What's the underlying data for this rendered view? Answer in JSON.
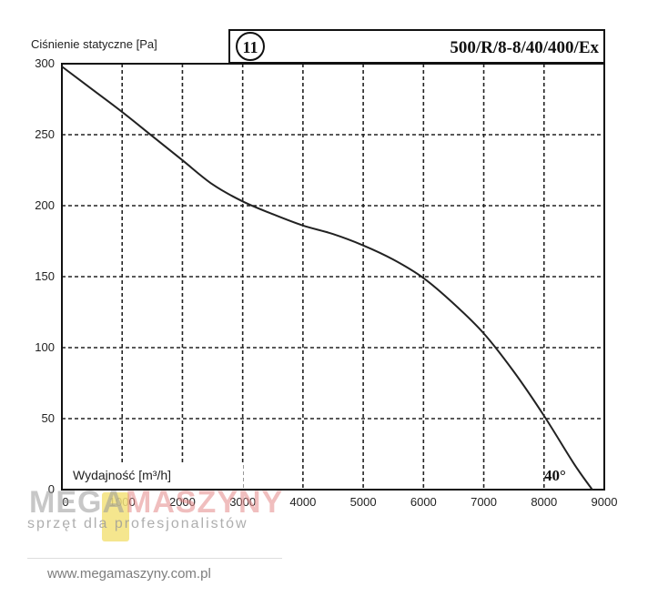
{
  "chart_data": {
    "type": "line",
    "title": "500/R/8-8/40/400/Ex",
    "badge": "11",
    "ylabel": "Ciśnienie statyczne [Pa]",
    "xlabel": "Wydajność [m³/h]",
    "xlim": [
      0,
      9000
    ],
    "ylim": [
      0,
      300
    ],
    "x_ticks": [
      0,
      1000,
      2000,
      3000,
      4000,
      5000,
      6000,
      7000,
      8000,
      9000
    ],
    "x_tick_labels": [
      "0",
      "1000",
      "2000",
      "3000",
      "4000",
      "5000",
      "6000",
      "7000",
      "8000",
      "9000"
    ],
    "y_ticks": [
      0,
      50,
      100,
      150,
      200,
      250,
      300
    ],
    "y_tick_labels": [
      "0",
      "50",
      "100",
      "150",
      "200",
      "250",
      "300"
    ],
    "grid": true,
    "annotation": "40°",
    "series": [
      {
        "x": [
          0,
          500,
          1000,
          1500,
          2000,
          2500,
          3000,
          3500,
          4000,
          4500,
          5000,
          5500,
          6000,
          6500,
          7000,
          7500,
          8000,
          8500,
          8800
        ],
        "y": [
          298,
          282,
          266,
          249,
          232,
          215,
          203,
          194,
          186,
          180,
          172,
          162,
          149,
          131,
          110,
          83,
          52,
          18,
          0
        ]
      }
    ]
  },
  "colors": {
    "line": "#222222",
    "grid": "#222222",
    "brand_gray": "#9a9a9a",
    "brand_red": "#e58a8a"
  },
  "watermark": {
    "brand_part1": "MEGA",
    "brand_part2": "MASZYNY",
    "tagline": "sprzęt dla profesjonalistów",
    "url": "www.megamaszyny.com.pl"
  }
}
